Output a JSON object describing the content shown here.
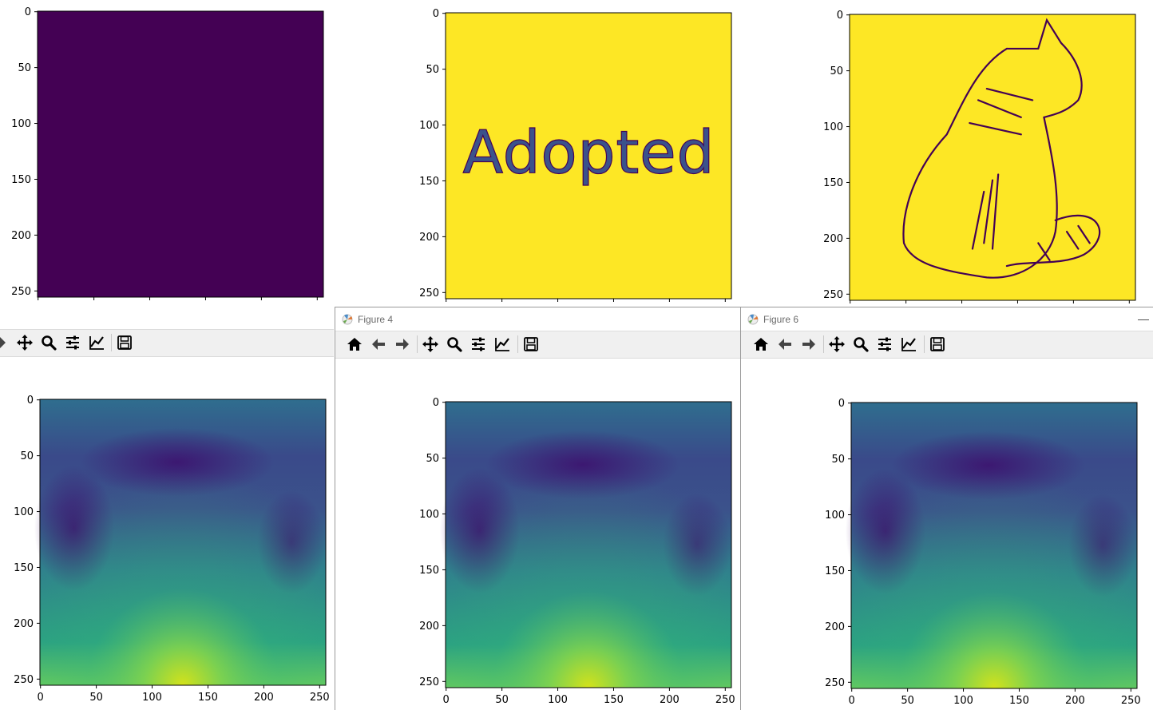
{
  "windows": [
    {
      "id": "fig1",
      "title": "",
      "toolbar": false,
      "image": "dark"
    },
    {
      "id": "fig3",
      "title": "",
      "toolbar": false,
      "image": "adopted"
    },
    {
      "id": "fig5",
      "title": "",
      "toolbar": false,
      "image": "cat"
    },
    {
      "id": "fig2",
      "title": "",
      "toolbar": true,
      "image": "heat"
    },
    {
      "id": "fig4",
      "title": "Figure 4",
      "toolbar": true,
      "image": "heat"
    },
    {
      "id": "fig6",
      "title": "Figure 6",
      "toolbar": true,
      "image": "heat"
    }
  ],
  "toolbar_icons": [
    "home-icon",
    "back-arrow-icon",
    "forward-arrow-icon",
    "pan-icon",
    "zoom-icon",
    "configure-subplots-icon",
    "edit-axes-icon",
    "save-icon"
  ],
  "adopted_text": "Adopted",
  "colors": {
    "viridis_dark": "#440154",
    "viridis_yellow": "#fde725",
    "viridis_teal": "#21918c",
    "viridis_blue": "#3b528b",
    "toolbar_bg": "#f0f0f0"
  },
  "chart_data": [
    {
      "type": "heatmap",
      "id": "fig1",
      "xlim": [
        0,
        256
      ],
      "ylim": [
        256,
        0
      ],
      "yticks": [
        0,
        50,
        100,
        150,
        200,
        250
      ],
      "xticks": [],
      "xtick_labels_visible": false
    },
    {
      "type": "heatmap",
      "id": "fig3",
      "xlim": [
        0,
        256
      ],
      "ylim": [
        256,
        0
      ],
      "yticks": [
        0,
        50,
        100,
        150,
        200,
        250
      ],
      "xticks": [],
      "xtick_labels_visible": false
    },
    {
      "type": "heatmap",
      "id": "fig5",
      "xlim": [
        0,
        256
      ],
      "ylim": [
        256,
        0
      ],
      "yticks": [
        0,
        50,
        100,
        150,
        200,
        250
      ],
      "xticks": [],
      "xtick_labels_visible": false
    },
    {
      "type": "heatmap",
      "id": "fig2",
      "xlim": [
        0,
        256
      ],
      "ylim": [
        256,
        0
      ],
      "yticks": [
        0,
        50,
        100,
        150,
        200,
        250
      ],
      "xticks": [
        0,
        50,
        100,
        150,
        200,
        250
      ]
    },
    {
      "type": "heatmap",
      "id": "fig4",
      "xlim": [
        0,
        256
      ],
      "ylim": [
        256,
        0
      ],
      "yticks": [
        0,
        50,
        100,
        150,
        200,
        250
      ],
      "xticks": [
        0,
        50,
        100,
        150,
        200,
        250
      ]
    },
    {
      "type": "heatmap",
      "id": "fig6",
      "xlim": [
        0,
        256
      ],
      "ylim": [
        256,
        0
      ],
      "yticks": [
        0,
        50,
        100,
        150,
        200,
        250
      ],
      "xticks": [
        0,
        50,
        100,
        150,
        200,
        250
      ]
    }
  ]
}
